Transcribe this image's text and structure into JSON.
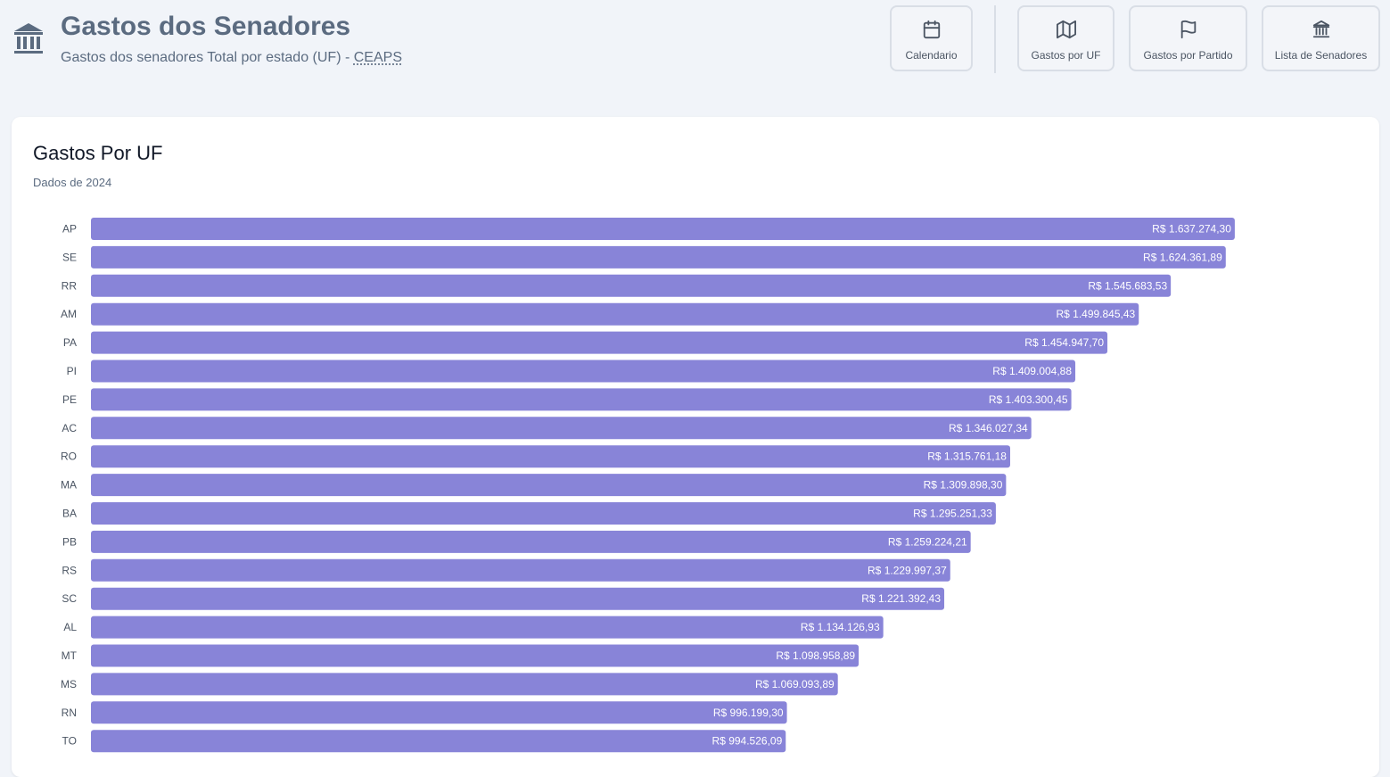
{
  "header": {
    "title": "Gastos dos Senadores",
    "subtitle_prefix": "Gastos dos senadores Total por estado (UF) - ",
    "subtitle_link": "CEAPS"
  },
  "nav": {
    "calendar_label": "Calendario",
    "uf_label": "Gastos por UF",
    "party_label": "Gastos por Partido",
    "senators_label": "Lista de Senadores"
  },
  "card": {
    "title": "Gastos Por UF",
    "subtitle": "Dados de 2024"
  },
  "colors": {
    "bar": "#8884d8",
    "bar_label": "#ffffff",
    "category_label": "#4b5563"
  },
  "chart_data": {
    "type": "bar",
    "orientation": "horizontal",
    "categories": [
      "AP",
      "SE",
      "RR",
      "AM",
      "PA",
      "PI",
      "PE",
      "AC",
      "RO",
      "MA",
      "BA",
      "PB",
      "RS",
      "SC",
      "AL",
      "MT",
      "MS",
      "RN",
      "TO"
    ],
    "values": [
      1637274.3,
      1624361.89,
      1545683.53,
      1499845.43,
      1454947.7,
      1409004.88,
      1403300.45,
      1346027.34,
      1315761.18,
      1309898.3,
      1295251.33,
      1259224.21,
      1229997.37,
      1221392.43,
      1134126.93,
      1098958.89,
      1069093.89,
      996199.3,
      994526.09
    ],
    "value_labels": [
      "R$ 1.637.274,30",
      "R$ 1.624.361,89",
      "R$ 1.545.683,53",
      "R$ 1.499.845,43",
      "R$ 1.454.947,70",
      "R$ 1.409.004,88",
      "R$ 1.403.300,45",
      "R$ 1.346.027,34",
      "R$ 1.315.761,18",
      "R$ 1.309.898,30",
      "R$ 1.295.251,33",
      "R$ 1.259.224,21",
      "R$ 1.229.997,37",
      "R$ 1.221.392,43",
      "R$ 1.134.126,93",
      "R$ 1.098.958,89",
      "R$ 1.069.093,89",
      "R$ 996.199,30",
      "R$ 994.526,09"
    ],
    "xlim": [
      0,
      1959000
    ],
    "grid": false,
    "legend": "none"
  }
}
